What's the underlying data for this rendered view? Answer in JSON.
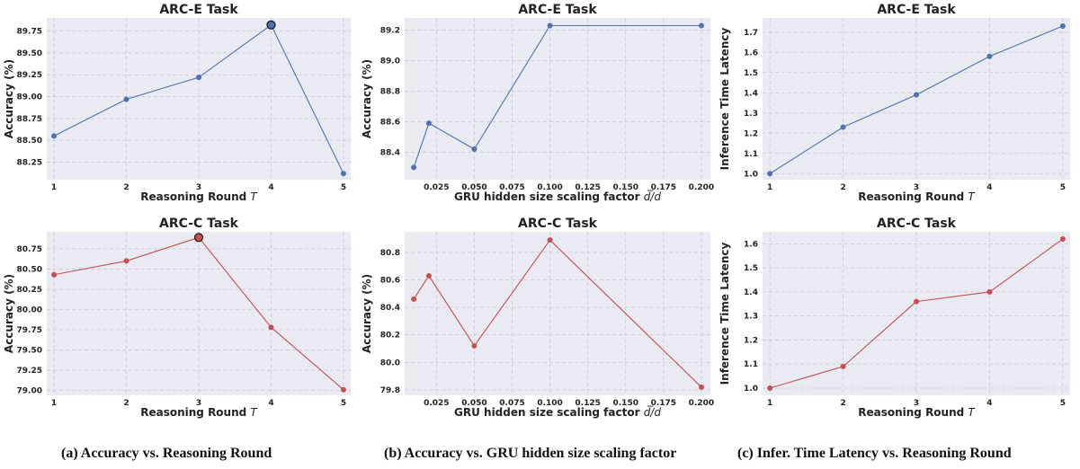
{
  "colors": {
    "blue": "#4c72b0",
    "red": "#c44e52",
    "panel_bg": "#eaeaf2",
    "grid": "#c9c9d6"
  },
  "captions": {
    "a": "(a)  Accuracy vs. Reasoning Round",
    "b": "(b)  Accuracy vs. GRU hidden size scaling factor",
    "c": "(c)  Infer. Time Latency vs. Reasoning Round"
  },
  "chart_data": [
    {
      "type": "line",
      "title": "ARC-E Task",
      "xlabel": "Reasoning Round",
      "xlabel_italic": "T",
      "ylabel": "Accuracy (%)",
      "color": "blue",
      "x": [
        1,
        2,
        3,
        4,
        5
      ],
      "y": [
        88.55,
        88.97,
        89.22,
        89.82,
        88.12
      ],
      "highlight_index": 3,
      "xlim": [
        0.9,
        5.1
      ],
      "ylim": [
        88.05,
        89.9
      ],
      "xticks": [
        "1",
        "2",
        "3",
        "4",
        "5"
      ],
      "yticks": [
        "88.25",
        "88.50",
        "88.75",
        "89.00",
        "89.25",
        "89.50",
        "89.75"
      ]
    },
    {
      "type": "line",
      "title": "ARC-E Task",
      "xlabel": "GRU hidden size scaling factor",
      "xlabel_italic": "d̅/d",
      "ylabel": "Accuracy (%)",
      "color": "blue",
      "x": [
        0.01,
        0.02,
        0.05,
        0.1,
        0.2
      ],
      "y": [
        88.3,
        88.59,
        88.42,
        89.23,
        89.23
      ],
      "xlim": [
        0.004,
        0.206
      ],
      "ylim": [
        88.22,
        89.28
      ],
      "xticks": [
        "0.025",
        "0.050",
        "0.075",
        "0.100",
        "0.125",
        "0.150",
        "0.175",
        "0.200"
      ],
      "yticks": [
        "88.4",
        "88.6",
        "88.8",
        "89.0",
        "89.2"
      ]
    },
    {
      "type": "line",
      "title": "ARC-E Task",
      "xlabel": "Reasoning Round",
      "xlabel_italic": "T",
      "ylabel": "Inference Time Latency",
      "color": "blue",
      "x": [
        1,
        2,
        3,
        4,
        5
      ],
      "y": [
        1.0,
        1.23,
        1.39,
        1.58,
        1.73
      ],
      "xlim": [
        0.9,
        5.1
      ],
      "ylim": [
        0.97,
        1.77
      ],
      "xticks": [
        "1",
        "2",
        "3",
        "4",
        "5"
      ],
      "yticks": [
        "1.0",
        "1.1",
        "1.2",
        "1.3",
        "1.4",
        "1.5",
        "1.6",
        "1.7"
      ]
    },
    {
      "type": "line",
      "title": "ARC-C Task",
      "xlabel": "Reasoning Round",
      "xlabel_italic": "T",
      "ylabel": "Accuracy (%)",
      "color": "red",
      "x": [
        1,
        2,
        3,
        4,
        5
      ],
      "y": [
        80.43,
        80.6,
        80.89,
        79.78,
        79.01
      ],
      "highlight_index": 2,
      "xlim": [
        0.9,
        5.1
      ],
      "ylim": [
        78.94,
        80.96
      ],
      "xticks": [
        "1",
        "2",
        "3",
        "4",
        "5"
      ],
      "yticks": [
        "79.00",
        "79.25",
        "79.50",
        "79.75",
        "80.00",
        "80.25",
        "80.50",
        "80.75"
      ]
    },
    {
      "type": "line",
      "title": "ARC-C Task",
      "xlabel": "GRU hidden size scaling factor",
      "xlabel_italic": "d̅/d",
      "ylabel": "Accuracy (%)",
      "color": "red",
      "x": [
        0.01,
        0.02,
        0.05,
        0.1,
        0.2
      ],
      "y": [
        80.46,
        80.63,
        80.12,
        80.89,
        79.82
      ],
      "xlim": [
        0.004,
        0.206
      ],
      "ylim": [
        79.76,
        80.95
      ],
      "xticks": [
        "0.025",
        "0.050",
        "0.075",
        "0.100",
        "0.125",
        "0.150",
        "0.175",
        "0.200"
      ],
      "yticks": [
        "79.8",
        "80.0",
        "80.2",
        "80.4",
        "80.6",
        "80.8"
      ]
    },
    {
      "type": "line",
      "title": "ARC-C Task",
      "xlabel": "Reasoning Round",
      "xlabel_italic": "T",
      "ylabel": "Inference Time Latency",
      "color": "red",
      "x": [
        1,
        2,
        3,
        4,
        5
      ],
      "y": [
        1.0,
        1.09,
        1.36,
        1.4,
        1.62
      ],
      "xlim": [
        0.9,
        5.1
      ],
      "ylim": [
        0.97,
        1.65
      ],
      "xticks": [
        "1",
        "2",
        "3",
        "4",
        "5"
      ],
      "yticks": [
        "1.0",
        "1.1",
        "1.2",
        "1.3",
        "1.4",
        "1.5",
        "1.6"
      ]
    }
  ]
}
